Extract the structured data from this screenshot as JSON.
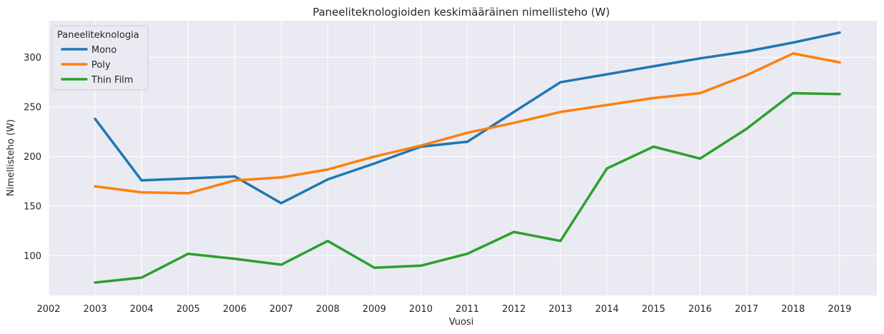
{
  "chart_data": {
    "type": "line",
    "title": "Paneeliteknologioiden keskimääräinen nimellisteho (W)",
    "xlabel": "Vuosi",
    "ylabel": "Nimellisteho (W)",
    "x_ticks": [
      "2002",
      "2003",
      "2004",
      "2005",
      "2006",
      "2007",
      "2008",
      "2009",
      "2010",
      "2011",
      "2012",
      "2013",
      "2014",
      "2015",
      "2016",
      "2017",
      "2018",
      "2019"
    ],
    "y_ticks": [
      100,
      150,
      200,
      250,
      300
    ],
    "xlim": [
      2002,
      2019.8
    ],
    "ylim": [
      60,
      337
    ],
    "x": [
      2003,
      2004,
      2005,
      2006,
      2007,
      2008,
      2009,
      2010,
      2011,
      2012,
      2013,
      2014,
      2015,
      2016,
      2017,
      2018,
      2019
    ],
    "legend_title": "Paneeliteknologia",
    "legend_position": "top-left",
    "grid": true,
    "series": [
      {
        "name": "Mono",
        "color": "#1f77b4",
        "values": [
          238,
          176,
          178,
          180,
          153,
          177,
          193,
          210,
          215,
          245,
          275,
          283,
          291,
          299,
          306,
          315,
          325
        ]
      },
      {
        "name": "Poly",
        "color": "#ff7f0e",
        "values": [
          170,
          164,
          163,
          176,
          179,
          187,
          200,
          211,
          224,
          234,
          245,
          252,
          259,
          264,
          282,
          304,
          295
        ]
      },
      {
        "name": "Thin Film",
        "color": "#2ca02c",
        "values": [
          73,
          78,
          102,
          97,
          91,
          115,
          88,
          90,
          102,
          124,
          115,
          188,
          210,
          198,
          228,
          264,
          263
        ]
      }
    ]
  }
}
